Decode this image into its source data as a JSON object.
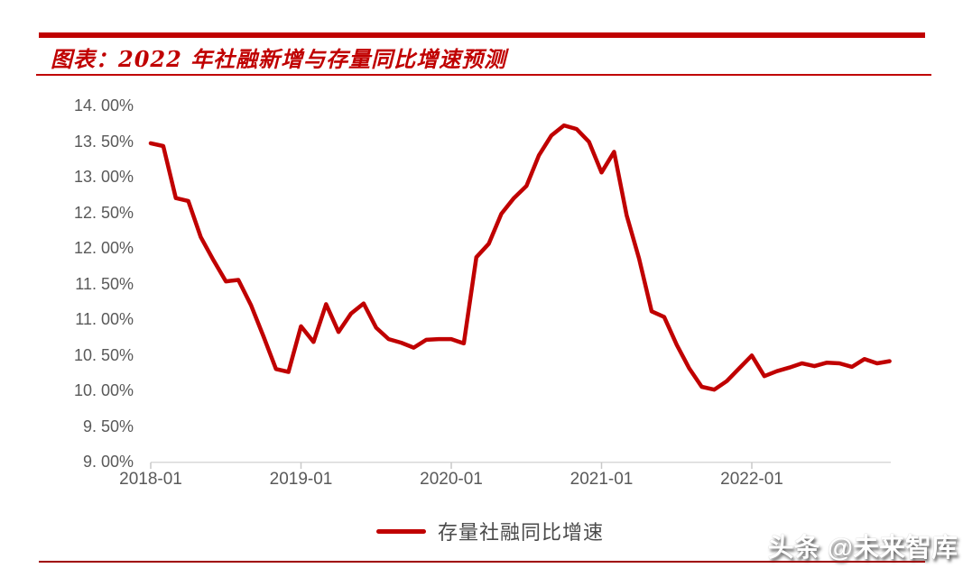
{
  "header": {
    "title": "图表：2022 年社融新增与存量同比增速预测"
  },
  "watermark": "头条 @未来智库",
  "colors": {
    "accent": "#C00000",
    "line": "#C00000",
    "axis_text": "#595959",
    "axis_line": "#D9D9D9",
    "tick_mark": "#C8C8C8",
    "bottom_rule": "#A00000"
  },
  "chart_data": {
    "type": "line",
    "title": "2022 年社融新增与存量同比增速预测",
    "grid": false,
    "legend_position": "bottom",
    "ylim": [
      9,
      14
    ],
    "y_tick_step": 0.5,
    "y_tick_labels": [
      "14. 00%",
      "13. 50%",
      "13. 00%",
      "12. 50%",
      "12. 00%",
      "11. 50%",
      "11. 00%",
      "10. 50%",
      "10. 00%",
      "9. 50%",
      "9. 00%"
    ],
    "x_tick_labels": [
      "2018-01",
      "2019-01",
      "2020-01",
      "2021-01",
      "2022-01"
    ],
    "x_tick_month_index": [
      0,
      12,
      24,
      36,
      48
    ],
    "x": [
      "2018-01",
      "2018-02",
      "2018-03",
      "2018-04",
      "2018-05",
      "2018-06",
      "2018-07",
      "2018-08",
      "2018-09",
      "2018-10",
      "2018-11",
      "2018-12",
      "2019-01",
      "2019-02",
      "2019-03",
      "2019-04",
      "2019-05",
      "2019-06",
      "2019-07",
      "2019-08",
      "2019-09",
      "2019-10",
      "2019-11",
      "2019-12",
      "2020-01",
      "2020-02",
      "2020-03",
      "2020-04",
      "2020-05",
      "2020-06",
      "2020-07",
      "2020-08",
      "2020-09",
      "2020-10",
      "2020-11",
      "2020-12",
      "2021-01",
      "2021-02",
      "2021-03",
      "2021-04",
      "2021-05",
      "2021-06",
      "2021-07",
      "2021-08",
      "2021-09",
      "2021-10",
      "2021-11",
      "2021-12",
      "2022-01",
      "2022-02",
      "2022-03",
      "2022-04",
      "2022-05",
      "2022-06",
      "2022-07",
      "2022-08",
      "2022-09",
      "2022-10",
      "2022-11",
      "2022-12"
    ],
    "series": [
      {
        "name": "存量社融同比增速",
        "color": "#C00000",
        "unit": "%",
        "values": [
          13.47,
          13.43,
          12.7,
          12.66,
          12.15,
          11.83,
          11.53,
          11.55,
          11.2,
          10.76,
          10.3,
          10.26,
          10.9,
          10.68,
          11.21,
          10.82,
          11.08,
          11.22,
          10.88,
          10.72,
          10.67,
          10.6,
          10.71,
          10.72,
          10.72,
          10.66,
          11.87,
          12.06,
          12.48,
          12.7,
          12.87,
          13.3,
          13.58,
          13.72,
          13.67,
          13.49,
          13.06,
          13.35,
          12.46,
          11.85,
          11.11,
          11.03,
          10.64,
          10.31,
          10.05,
          10.01,
          10.13,
          10.31,
          10.49,
          10.2,
          10.27,
          10.32,
          10.38,
          10.34,
          10.39,
          10.38,
          10.33,
          10.44,
          10.38,
          10.41
        ]
      }
    ]
  }
}
